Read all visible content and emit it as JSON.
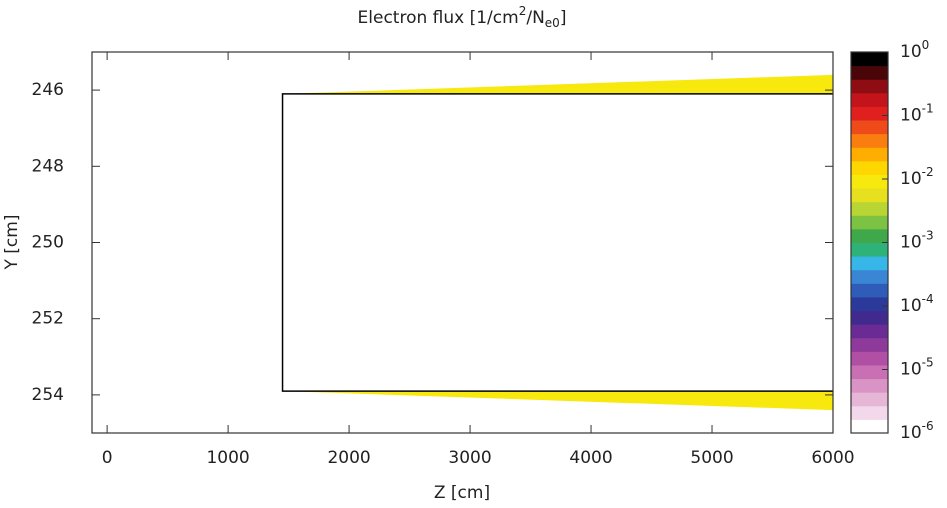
{
  "chart_data": {
    "type": "contour",
    "title": [
      "Electron flux [1/cm",
      "2",
      "/N",
      "e0",
      "]"
    ],
    "xlabel": "Z [cm]",
    "ylabel": "Y [cm]",
    "xlim": [
      -125,
      6000
    ],
    "xticks": [
      0,
      1000,
      2000,
      3000,
      4000,
      5000,
      6000
    ],
    "ylim": [
      255,
      245
    ],
    "yticks": [
      246,
      248,
      250,
      252,
      254
    ],
    "outline": {
      "color": "#000000",
      "z": [
        6000,
        1450,
        1450,
        6000
      ],
      "y": [
        246.1,
        246.1,
        253.9,
        253.9
      ]
    },
    "regions": [
      {
        "z": [
          1450,
          6000,
          6000
        ],
        "y": [
          246.1,
          245.6,
          246.1
        ],
        "value": 0.01
      },
      {
        "z": [
          1450,
          6000,
          6000
        ],
        "y": [
          253.9,
          254.4,
          253.9
        ],
        "value": 0.01
      }
    ],
    "colorbar": {
      "log": true,
      "lim": [
        1e-06,
        1
      ],
      "ticks": [
        {
          "value": 1,
          "label": [
            "10",
            "0"
          ]
        },
        {
          "value": 0.1,
          "label": [
            "10",
            "-1"
          ]
        },
        {
          "value": 0.01,
          "label": [
            "10",
            "-2"
          ]
        },
        {
          "value": 0.001,
          "label": [
            "10",
            "-3"
          ]
        },
        {
          "value": 0.0001,
          "label": [
            "10",
            "-4"
          ]
        },
        {
          "value": 1e-05,
          "label": [
            "10",
            "-5"
          ]
        },
        {
          "value": 1e-06,
          "label": [
            "10",
            "-6"
          ]
        }
      ],
      "colors": [
        "#ffffff",
        "#f2d8ea",
        "#e6b6d6",
        "#d993c4",
        "#c870b3",
        "#b04fa3",
        "#8e3a9a",
        "#6a2c94",
        "#402a8e",
        "#2b3a9a",
        "#2f5cb8",
        "#3a86d4",
        "#36b7e8",
        "#2fb27a",
        "#3fa84a",
        "#7cc243",
        "#b8d534",
        "#e6e01f",
        "#f7e80e",
        "#ffd700",
        "#ffae00",
        "#f97d0f",
        "#ef4b1a",
        "#e0201f",
        "#c3141b",
        "#8e0d12",
        "#4a0508",
        "#000000"
      ]
    }
  }
}
